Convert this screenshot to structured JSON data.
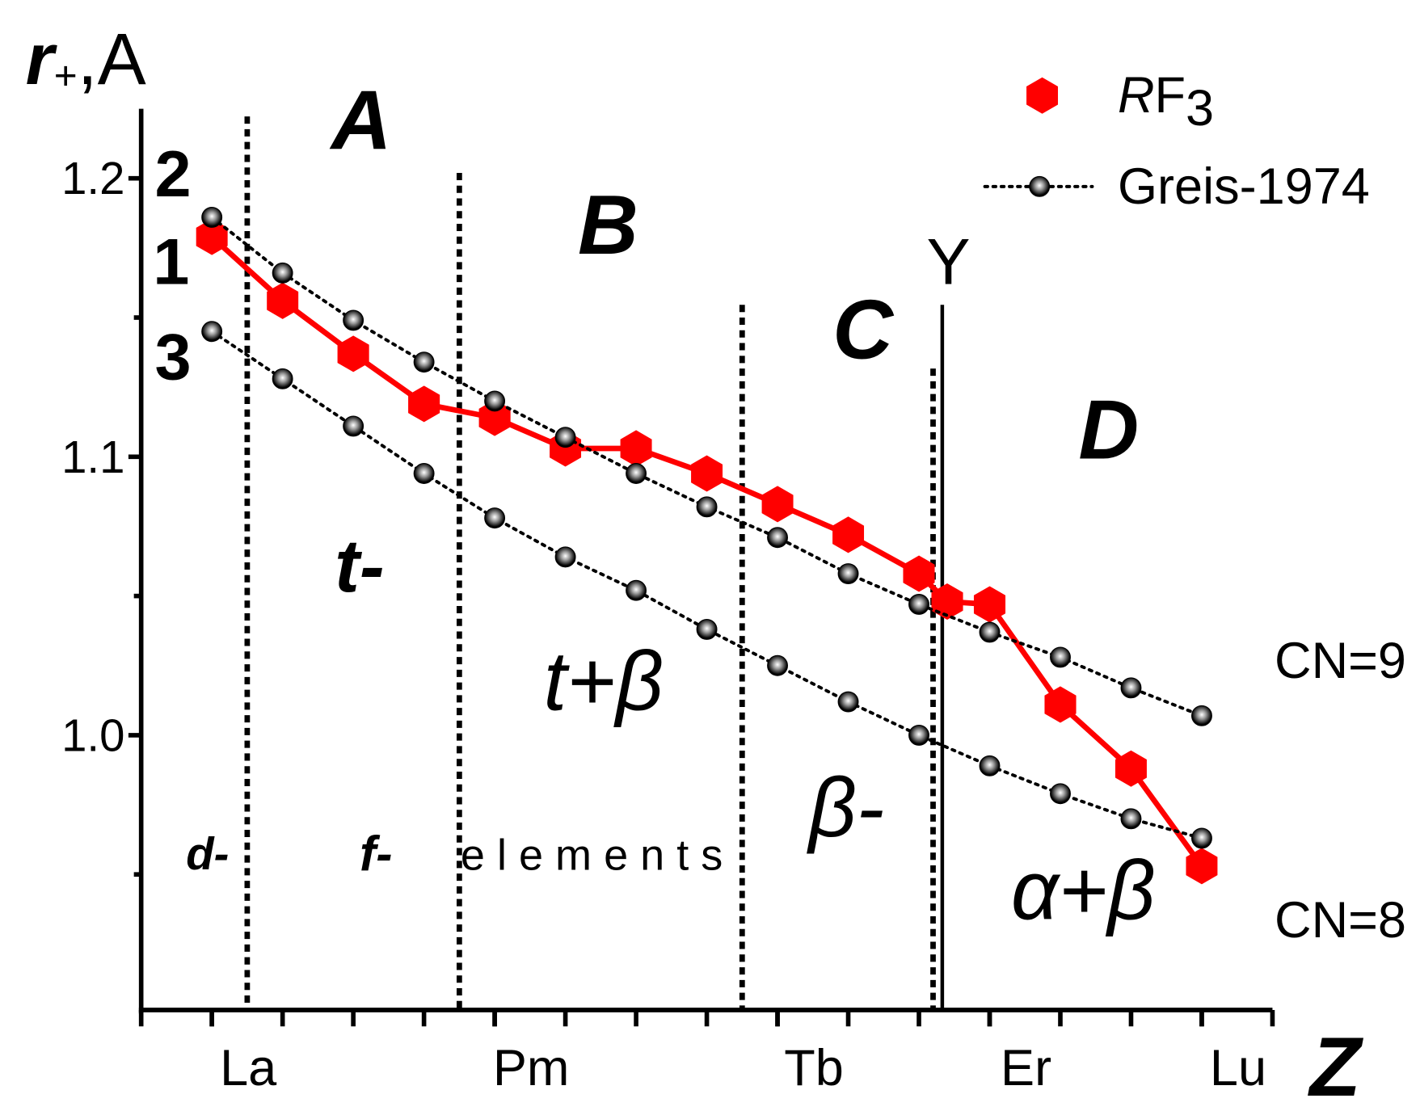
{
  "chart_data": {
    "type": "line",
    "y_label": "r+,A",
    "x_label": "Z",
    "xlim": [
      56,
      72
    ],
    "xticks": [
      {
        "value": 57,
        "label": "La"
      },
      {
        "value": 61,
        "label": "Pm"
      },
      {
        "value": 65,
        "label": "Tb"
      },
      {
        "value": 68,
        "label": "Er"
      },
      {
        "value": 71,
        "label": "Lu"
      }
    ],
    "xminorticks": [
      56,
      57,
      58,
      59,
      60,
      61,
      62,
      63,
      64,
      65,
      66,
      67,
      68,
      69,
      70,
      71,
      72
    ],
    "ylim": [
      0.9,
      1.225
    ],
    "yticks": [
      {
        "value": 1,
        "label": "1.0"
      },
      1.1,
      1.2
    ],
    "yminorticks": [
      0.95,
      1.05,
      1.15
    ],
    "legend": "upper right",
    "series": [
      {
        "name": "RF3",
        "color": "#ff0000",
        "marker": "hexagon",
        "line": "solid",
        "x": [
          57,
          58,
          59,
          60,
          61,
          62,
          63,
          64,
          65,
          66,
          67,
          67.4,
          68,
          69,
          70,
          71
        ],
        "values": [
          1.179,
          1.156,
          1.137,
          1.119,
          1.114,
          1.103,
          1.103,
          1.094,
          1.083,
          1.072,
          1.058,
          1.048,
          1.047,
          1.011,
          0.988,
          0.953
        ]
      },
      {
        "name": "Greis-1974",
        "label": "CN=9",
        "color": "#000000",
        "marker": "sphere",
        "line": "dotted",
        "x": [
          57,
          58,
          59,
          60,
          61,
          62,
          63,
          64,
          65,
          66,
          67,
          68,
          69,
          70,
          71
        ],
        "values": [
          1.186,
          1.166,
          1.149,
          1.134,
          1.12,
          1.107,
          1.094,
          1.082,
          1.071,
          1.058,
          1.047,
          1.037,
          1.028,
          1.017,
          1.007
        ]
      },
      {
        "label": "CN=8",
        "color": "#000000",
        "marker": "sphere",
        "line": "dotted",
        "x": [
          57,
          58,
          59,
          60,
          61,
          62,
          63,
          64,
          65,
          66,
          67,
          68,
          69,
          70,
          71
        ],
        "values": [
          1.145,
          1.128,
          1.111,
          1.094,
          1.078,
          1.064,
          1.052,
          1.038,
          1.025,
          1.012,
          1.0,
          0.989,
          0.979,
          0.97,
          0.963
        ]
      }
    ],
    "boundaries": [
      57.5,
      60.5,
      64.5,
      67.2
    ],
    "y_line": 67.33,
    "annotations": [
      "2",
      "1",
      "3",
      "A",
      "B",
      "C",
      "D",
      "t-",
      "t+β",
      "β-",
      "α+β",
      "d-",
      "f-",
      "e l e m e n t s",
      "Y"
    ]
  }
}
